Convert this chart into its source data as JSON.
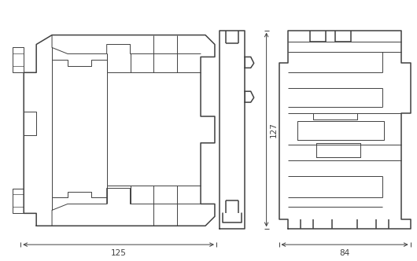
{
  "bg_color": "#ffffff",
  "line_color": "#404040",
  "lw_outer": 1.1,
  "lw_inner": 0.7,
  "fig_w": 5.3,
  "fig_h": 3.32,
  "dpi": 100
}
